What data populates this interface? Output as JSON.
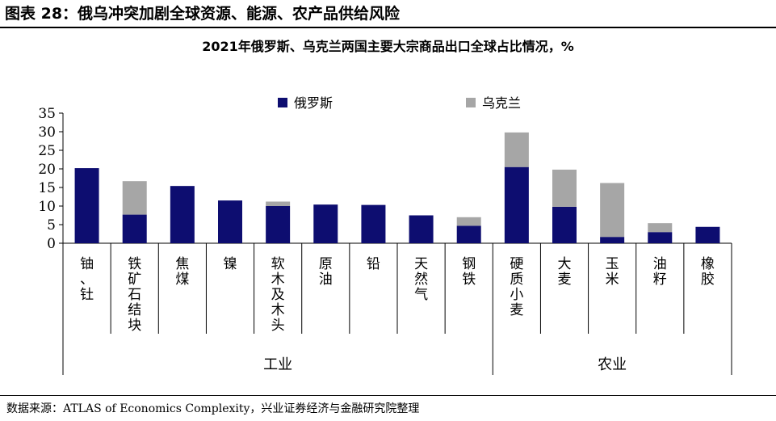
{
  "figure_title": "图表 28：俄乌冲突加剧全球资源、能源、农产品供给风险",
  "source": "数据来源：ATLAS of Economics Complexity，兴业证券经济与金融研究院整理",
  "colors": {
    "russia": "#0d0d70",
    "ukraine": "#a6a6a6"
  },
  "chart_data": {
    "type": "bar",
    "stacked": true,
    "title": "2021年俄罗斯、乌克兰两国主要大宗商品出口全球占比情况，%",
    "xlabel": "",
    "ylabel": "",
    "ylim": [
      0,
      35
    ],
    "yticks": [
      0,
      5,
      10,
      15,
      20,
      25,
      30,
      35
    ],
    "legend_position": "top-center",
    "categories": [
      "铀、钍",
      "铁矿石结块",
      "焦煤",
      "镍",
      "软木及木头",
      "原油",
      "铅",
      "天然气",
      "钢铁",
      "硬质小麦",
      "大麦",
      "玉米",
      "油籽",
      "橡胶"
    ],
    "groups": [
      {
        "label": "工业",
        "start": 0,
        "end": 8
      },
      {
        "label": "农业",
        "start": 9,
        "end": 13
      }
    ],
    "series": [
      {
        "name": "俄罗斯",
        "values": [
          20.2,
          7.7,
          15.4,
          11.5,
          10.0,
          10.4,
          10.3,
          7.5,
          4.7,
          20.5,
          9.8,
          1.7,
          3.0,
          4.4
        ]
      },
      {
        "name": "乌克兰",
        "values": [
          0,
          9.0,
          0,
          0,
          1.2,
          0,
          0,
          0,
          2.3,
          9.3,
          10.0,
          14.5,
          2.4,
          0
        ]
      }
    ]
  }
}
